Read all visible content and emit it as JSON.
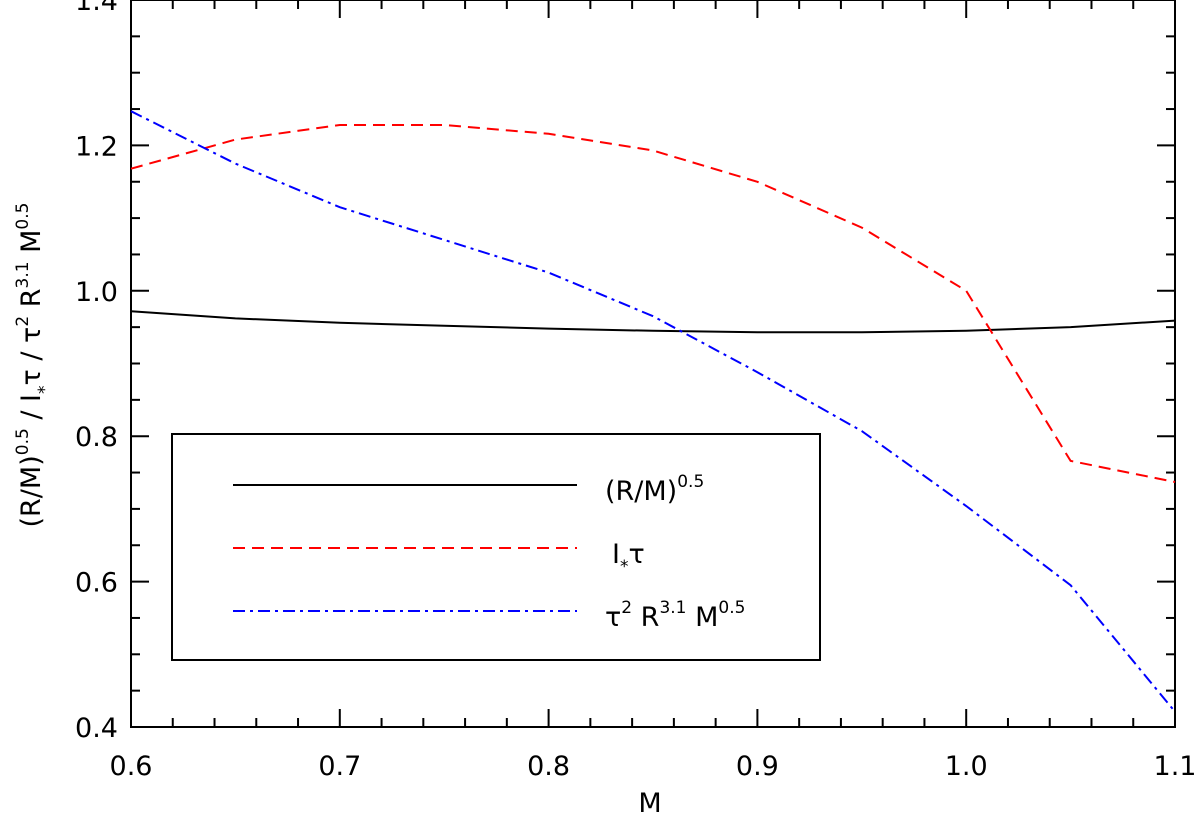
{
  "chart_data": {
    "type": "line",
    "title": "",
    "xlabel": "M",
    "ylabel": {
      "base": "(R/M)",
      "exp1": "0.5",
      "sep1": " / I",
      "sub": "*",
      "tau": "τ",
      "sep2": " / ",
      "tau2": "τ",
      "exp2": "2",
      "r": " R",
      "exp3": "3.1",
      "m": " M",
      "exp4": "0.5"
    },
    "xlim": [
      0.6,
      1.1
    ],
    "ylim": [
      0.4,
      1.4
    ],
    "xticks": [
      "0.6",
      "0.7",
      "0.8",
      "0.9",
      "1.0",
      "1.1"
    ],
    "yticks": [
      "0.4",
      "0.6",
      "0.8",
      "1.0",
      "1.2",
      "1.4"
    ],
    "grid": false,
    "legend_position": "lower-left",
    "series": [
      {
        "name": "(R/M)^0.5",
        "style": "solid",
        "color": "#000000",
        "x": [
          0.6,
          0.65,
          0.7,
          0.75,
          0.8,
          0.85,
          0.9,
          0.95,
          1.0,
          1.05,
          1.1
        ],
        "y": [
          0.972,
          0.962,
          0.956,
          0.952,
          0.948,
          0.945,
          0.943,
          0.943,
          0.945,
          0.95,
          0.959
        ]
      },
      {
        "name": "I*τ",
        "style": "dashed",
        "color": "#ff0000",
        "x": [
          0.6,
          0.65,
          0.7,
          0.75,
          0.8,
          0.85,
          0.9,
          0.95,
          1.0,
          1.05,
          1.1
        ],
        "y": [
          1.168,
          1.208,
          1.228,
          1.228,
          1.216,
          1.193,
          1.15,
          1.087,
          1.0,
          0.766,
          0.737
        ]
      },
      {
        "name": "τ^2 R^3.1 M^0.5",
        "style": "dashdot",
        "color": "#0000ff",
        "x": [
          0.6,
          0.65,
          0.7,
          0.75,
          0.8,
          0.85,
          0.9,
          0.95,
          1.0,
          1.05,
          1.1
        ],
        "y": [
          1.247,
          1.175,
          1.115,
          1.07,
          1.025,
          0.965,
          0.888,
          0.807,
          0.704,
          0.595,
          0.421
        ]
      }
    ],
    "legend": [
      {
        "label": "(R/M)",
        "sup": "0.5"
      },
      {
        "label": "I",
        "sub": "*",
        "tail": "τ"
      },
      {
        "label": "τ",
        "sup": "2",
        "mid": " R",
        "sup2": "3.1",
        "tail": " M",
        "sup3": "0.5"
      }
    ]
  }
}
